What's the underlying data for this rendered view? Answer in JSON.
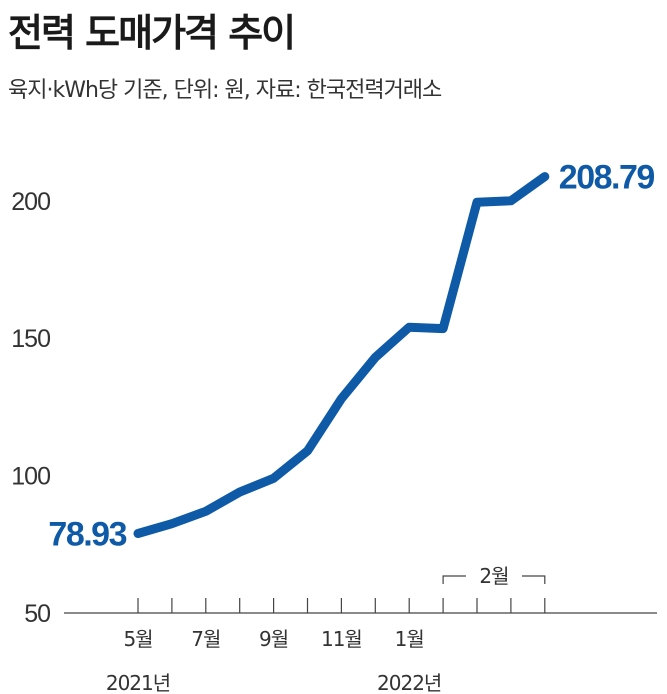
{
  "chart_data": {
    "type": "line",
    "title": "전력 도매가격 추이",
    "subtitle": "육지·kWh당 기준, 단위: 원, 자료: 한국전력거래소",
    "ylim": [
      50,
      220
    ],
    "yticks": [
      50,
      100,
      150,
      200
    ],
    "x_labels": [
      {
        "index": 0,
        "label": "5월"
      },
      {
        "index": 2,
        "label": "7월"
      },
      {
        "index": 4,
        "label": "9월"
      },
      {
        "index": 6,
        "label": "11월"
      },
      {
        "index": 8,
        "label": "1월"
      }
    ],
    "year_labels": [
      {
        "index": 0,
        "label": "2021년"
      },
      {
        "index": 8,
        "label": "2022년"
      }
    ],
    "bracket": {
      "start": 9,
      "end": 12,
      "label": "2월"
    },
    "series": [
      {
        "values": [
          78.93,
          82.5,
          87,
          94,
          99,
          109,
          128,
          143,
          154,
          153.5,
          199.5,
          200,
          208.79
        ]
      }
    ],
    "first_label": "78.93",
    "last_label": "208.79",
    "line_color": "#0e5aa7"
  }
}
